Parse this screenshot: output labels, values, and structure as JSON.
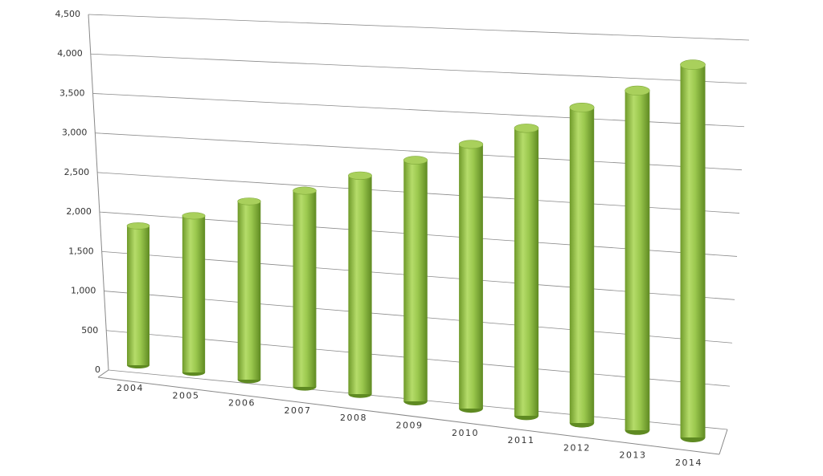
{
  "chart_data": {
    "type": "bar3d",
    "categories": [
      "2004",
      "2005",
      "2006",
      "2007",
      "2008",
      "2009",
      "2010",
      "2011",
      "2012",
      "2013",
      "2014"
    ],
    "values": [
      1750,
      1950,
      2200,
      2400,
      2650,
      2900,
      3150,
      3400,
      3700,
      3950,
      4300
    ],
    "color": "#8dbb3f",
    "ylim": [
      0,
      4500
    ],
    "yticks": [
      0,
      500,
      {
        "value": 1000,
        "label": "1,000"
      },
      {
        "value": 1500,
        "label": "1,500"
      },
      {
        "value": 2000,
        "label": "2,000"
      },
      {
        "value": 2500,
        "label": "2,500"
      },
      {
        "value": 3000,
        "label": "3,000"
      },
      {
        "value": 3500,
        "label": "3,500"
      },
      {
        "value": 4000,
        "label": "4,000"
      },
      {
        "value": 4500,
        "label": "4,500"
      }
    ],
    "grid": true
  }
}
